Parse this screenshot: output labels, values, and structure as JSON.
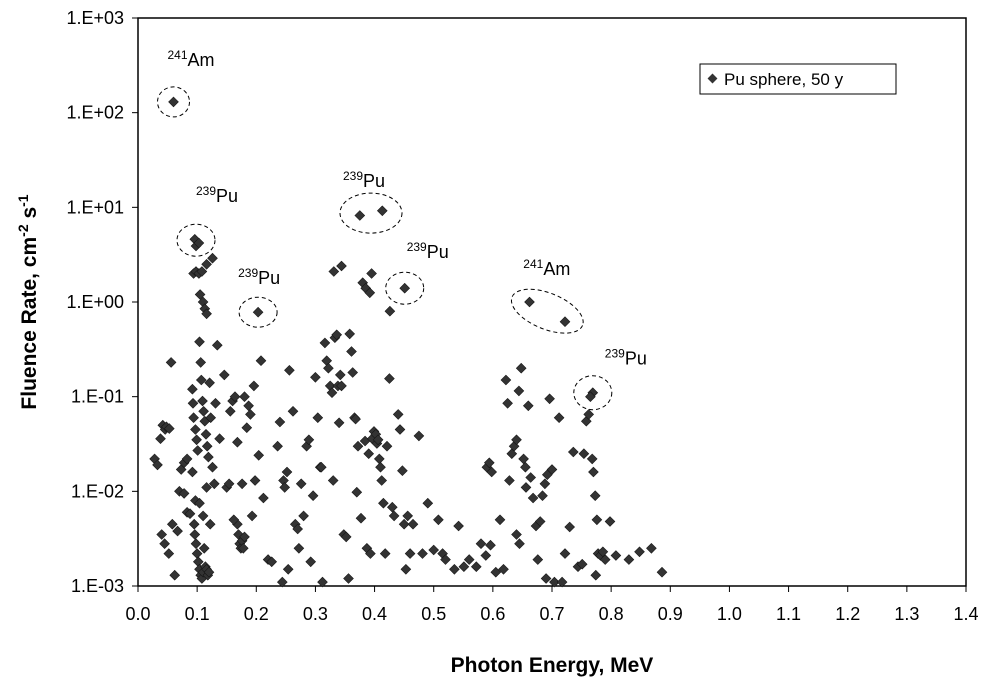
{
  "chart_data": {
    "type": "scatter",
    "title": "",
    "xlabel": "Photon Energy, MeV",
    "ylabel": {
      "base": "Fluence Rate, cm",
      "sup1": "-2",
      "mid": " s",
      "sup2": "-1"
    },
    "xlim": [
      0.0,
      1.4
    ],
    "ylim": [
      0.001,
      1000
    ],
    "yscale": "log",
    "grid": false,
    "legend_position": "top-right",
    "x_ticks": [
      "0.0",
      "0.1",
      "0.2",
      "0.3",
      "0.4",
      "0.5",
      "0.6",
      "0.7",
      "0.8",
      "0.9",
      "1.0",
      "1.1",
      "1.2",
      "1.3",
      "1.4"
    ],
    "x_tick_values": [
      0,
      0.1,
      0.2,
      0.3,
      0.4,
      0.5,
      0.6,
      0.7,
      0.8,
      0.9,
      1.0,
      1.1,
      1.2,
      1.3,
      1.4
    ],
    "y_ticks": [
      "1.E-03",
      "1.E-02",
      "1.E-01",
      "1.E+00",
      "1.E+01",
      "1.E+02",
      "1.E+03"
    ],
    "y_tick_values": [
      0.001,
      0.01,
      0.1,
      1,
      10,
      100,
      1000
    ],
    "series": [
      {
        "name": "Pu sphere, 50 y",
        "marker_color": "#333333",
        "points": [
          [
            0.06,
            130
          ],
          [
            0.096,
            4.6
          ],
          [
            0.098,
            3.9
          ],
          [
            0.103,
            4.2
          ],
          [
            0.203,
            0.78
          ],
          [
            0.375,
            8.2
          ],
          [
            0.413,
            9.2
          ],
          [
            0.451,
            1.4
          ],
          [
            0.662,
            1.0
          ],
          [
            0.722,
            0.62
          ],
          [
            0.769,
            0.11
          ],
          [
            0.094,
            2.0
          ],
          [
            0.098,
            2.1
          ],
          [
            0.103,
            2.0
          ],
          [
            0.108,
            2.1
          ],
          [
            0.116,
            2.5
          ],
          [
            0.126,
            2.9
          ],
          [
            0.105,
            1.2
          ],
          [
            0.11,
            1.0
          ],
          [
            0.113,
            0.85
          ],
          [
            0.116,
            0.75
          ],
          [
            0.331,
            2.1
          ],
          [
            0.344,
            2.4
          ],
          [
            0.38,
            1.6
          ],
          [
            0.385,
            1.4
          ],
          [
            0.392,
            1.25
          ],
          [
            0.395,
            2.0
          ],
          [
            0.426,
            0.8
          ],
          [
            0.056,
            0.23
          ],
          [
            0.042,
            0.05
          ],
          [
            0.046,
            0.045
          ],
          [
            0.048,
            0.048
          ],
          [
            0.053,
            0.046
          ],
          [
            0.028,
            0.022
          ],
          [
            0.033,
            0.019
          ],
          [
            0.038,
            0.036
          ],
          [
            0.04,
            0.0035
          ],
          [
            0.045,
            0.0028
          ],
          [
            0.052,
            0.0022
          ],
          [
            0.062,
            0.0013
          ],
          [
            0.058,
            0.0045
          ],
          [
            0.067,
            0.0038
          ],
          [
            0.073,
            0.017
          ],
          [
            0.078,
            0.02
          ],
          [
            0.083,
            0.022
          ],
          [
            0.07,
            0.01
          ],
          [
            0.078,
            0.0095
          ],
          [
            0.083,
            0.006
          ],
          [
            0.088,
            0.0058
          ],
          [
            0.092,
            0.016
          ],
          [
            0.092,
            0.12
          ],
          [
            0.093,
            0.085
          ],
          [
            0.094,
            0.06
          ],
          [
            0.097,
            0.045
          ],
          [
            0.099,
            0.035
          ],
          [
            0.101,
            0.027
          ],
          [
            0.104,
            0.38
          ],
          [
            0.106,
            0.23
          ],
          [
            0.107,
            0.15
          ],
          [
            0.109,
            0.09
          ],
          [
            0.111,
            0.07
          ],
          [
            0.113,
            0.055
          ],
          [
            0.115,
            0.04
          ],
          [
            0.117,
            0.03
          ],
          [
            0.119,
            0.023
          ],
          [
            0.121,
            0.14
          ],
          [
            0.123,
            0.06
          ],
          [
            0.126,
            0.018
          ],
          [
            0.129,
            0.012
          ],
          [
            0.131,
            0.085
          ],
          [
            0.134,
            0.35
          ],
          [
            0.138,
            0.036
          ],
          [
            0.096,
            0.0035
          ],
          [
            0.098,
            0.0028
          ],
          [
            0.1,
            0.0022
          ],
          [
            0.102,
            0.0018
          ],
          [
            0.104,
            0.0015
          ],
          [
            0.106,
            0.0013
          ],
          [
            0.108,
            0.0012
          ],
          [
            0.11,
            0.0014
          ],
          [
            0.112,
            0.0025
          ],
          [
            0.114,
            0.0016
          ],
          [
            0.116,
            0.0015
          ],
          [
            0.118,
            0.0013
          ],
          [
            0.12,
            0.0014
          ],
          [
            0.097,
            0.008
          ],
          [
            0.104,
            0.0075
          ],
          [
            0.11,
            0.0055
          ],
          [
            0.116,
            0.011
          ],
          [
            0.122,
            0.0045
          ],
          [
            0.095,
            0.0045
          ],
          [
            0.146,
            0.17
          ],
          [
            0.15,
            0.011
          ],
          [
            0.154,
            0.012
          ],
          [
            0.156,
            0.07
          ],
          [
            0.16,
            0.09
          ],
          [
            0.164,
            0.1
          ],
          [
            0.168,
            0.0045
          ],
          [
            0.17,
            0.0035
          ],
          [
            0.172,
            0.0028
          ],
          [
            0.174,
            0.0025
          ],
          [
            0.176,
            0.003
          ],
          [
            0.178,
            0.0025
          ],
          [
            0.18,
            0.0033
          ],
          [
            0.162,
            0.005
          ],
          [
            0.168,
            0.033
          ],
          [
            0.176,
            0.012
          ],
          [
            0.18,
            0.1
          ],
          [
            0.184,
            0.047
          ],
          [
            0.187,
            0.08
          ],
          [
            0.19,
            0.065
          ],
          [
            0.193,
            0.0055
          ],
          [
            0.196,
            0.13
          ],
          [
            0.198,
            0.013
          ],
          [
            0.204,
            0.024
          ],
          [
            0.208,
            0.24
          ],
          [
            0.212,
            0.0085
          ],
          [
            0.22,
            0.0019
          ],
          [
            0.226,
            0.0018
          ],
          [
            0.236,
            0.03
          ],
          [
            0.24,
            0.054
          ],
          [
            0.246,
            0.013
          ],
          [
            0.248,
            0.011
          ],
          [
            0.252,
            0.016
          ],
          [
            0.254,
            0.0015
          ],
          [
            0.244,
            0.0011
          ],
          [
            0.256,
            0.19
          ],
          [
            0.262,
            0.07
          ],
          [
            0.266,
            0.0045
          ],
          [
            0.27,
            0.004
          ],
          [
            0.272,
            0.0025
          ],
          [
            0.276,
            0.012
          ],
          [
            0.28,
            0.0055
          ],
          [
            0.285,
            0.03
          ],
          [
            0.289,
            0.035
          ],
          [
            0.292,
            0.0018
          ],
          [
            0.296,
            0.009
          ],
          [
            0.3,
            0.16
          ],
          [
            0.304,
            0.06
          ],
          [
            0.308,
            0.018
          ],
          [
            0.31,
            0.018
          ],
          [
            0.312,
            0.0011
          ],
          [
            0.316,
            0.37
          ],
          [
            0.319,
            0.24
          ],
          [
            0.322,
            0.2
          ],
          [
            0.325,
            0.13
          ],
          [
            0.328,
            0.11
          ],
          [
            0.33,
            0.013
          ],
          [
            0.333,
            0.42
          ],
          [
            0.336,
            0.45
          ],
          [
            0.338,
            0.13
          ],
          [
            0.34,
            0.053
          ],
          [
            0.342,
            0.17
          ],
          [
            0.344,
            0.13
          ],
          [
            0.348,
            0.0035
          ],
          [
            0.352,
            0.0033
          ],
          [
            0.356,
            0.0012
          ],
          [
            0.358,
            0.46
          ],
          [
            0.361,
            0.3
          ],
          [
            0.363,
            0.18
          ],
          [
            0.366,
            0.06
          ],
          [
            0.368,
            0.058
          ],
          [
            0.37,
            0.0098
          ],
          [
            0.372,
            0.03
          ],
          [
            0.377,
            0.0052
          ],
          [
            0.384,
            0.034
          ],
          [
            0.387,
            0.0025
          ],
          [
            0.39,
            0.025
          ],
          [
            0.393,
            0.0022
          ],
          [
            0.396,
            0.036
          ],
          [
            0.399,
            0.043
          ],
          [
            0.402,
            0.04
          ],
          [
            0.404,
            0.032
          ],
          [
            0.406,
            0.035
          ],
          [
            0.408,
            0.022
          ],
          [
            0.41,
            0.018
          ],
          [
            0.412,
            0.013
          ],
          [
            0.415,
            0.0075
          ],
          [
            0.418,
            0.0022
          ],
          [
            0.421,
            0.03
          ],
          [
            0.425,
            0.155
          ],
          [
            0.43,
            0.0068
          ],
          [
            0.433,
            0.0055
          ],
          [
            0.44,
            0.065
          ],
          [
            0.443,
            0.045
          ],
          [
            0.447,
            0.0165
          ],
          [
            0.45,
            0.0045
          ],
          [
            0.453,
            0.0015
          ],
          [
            0.456,
            0.0055
          ],
          [
            0.46,
            0.0022
          ],
          [
            0.465,
            0.0045
          ],
          [
            0.475,
            0.0385
          ],
          [
            0.481,
            0.0022
          ],
          [
            0.49,
            0.0075
          ],
          [
            0.5,
            0.0024
          ],
          [
            0.508,
            0.005
          ],
          [
            0.515,
            0.0022
          ],
          [
            0.52,
            0.0019
          ],
          [
            0.535,
            0.0015
          ],
          [
            0.542,
            0.0043
          ],
          [
            0.551,
            0.0016
          ],
          [
            0.56,
            0.0019
          ],
          [
            0.572,
            0.0016
          ],
          [
            0.58,
            0.0028
          ],
          [
            0.588,
            0.0021
          ],
          [
            0.596,
            0.0027
          ],
          [
            0.59,
            0.018
          ],
          [
            0.594,
            0.02
          ],
          [
            0.598,
            0.016
          ],
          [
            0.605,
            0.0014
          ],
          [
            0.612,
            0.005
          ],
          [
            0.618,
            0.0015
          ],
          [
            0.622,
            0.15
          ],
          [
            0.625,
            0.085
          ],
          [
            0.628,
            0.013
          ],
          [
            0.632,
            0.025
          ],
          [
            0.636,
            0.03
          ],
          [
            0.64,
            0.035
          ],
          [
            0.644,
            0.115
          ],
          [
            0.648,
            0.2
          ],
          [
            0.652,
            0.022
          ],
          [
            0.655,
            0.018
          ],
          [
            0.656,
            0.011
          ],
          [
            0.66,
            0.08
          ],
          [
            0.664,
            0.014
          ],
          [
            0.668,
            0.0085
          ],
          [
            0.673,
            0.0043
          ],
          [
            0.676,
            0.0019
          ],
          [
            0.68,
            0.0048
          ],
          [
            0.684,
            0.009
          ],
          [
            0.688,
            0.012
          ],
          [
            0.692,
            0.015
          ],
          [
            0.696,
            0.095
          ],
          [
            0.7,
            0.017
          ],
          [
            0.704,
            0.0011
          ],
          [
            0.712,
            0.06
          ],
          [
            0.717,
            0.0011
          ],
          [
            0.722,
            0.0022
          ],
          [
            0.73,
            0.0042
          ],
          [
            0.736,
            0.026
          ],
          [
            0.744,
            0.0016
          ],
          [
            0.751,
            0.0017
          ],
          [
            0.754,
            0.025
          ],
          [
            0.758,
            0.055
          ],
          [
            0.762,
            0.065
          ],
          [
            0.765,
            0.1
          ],
          [
            0.768,
            0.022
          ],
          [
            0.77,
            0.016
          ],
          [
            0.773,
            0.009
          ],
          [
            0.776,
            0.005
          ],
          [
            0.778,
            0.0022
          ],
          [
            0.782,
            0.0021
          ],
          [
            0.786,
            0.0023
          ],
          [
            0.79,
            0.0019
          ],
          [
            0.798,
            0.0048
          ],
          [
            0.808,
            0.0021
          ],
          [
            0.83,
            0.0019
          ],
          [
            0.848,
            0.0023
          ],
          [
            0.868,
            0.0025
          ],
          [
            0.886,
            0.0014
          ],
          [
            0.64,
            0.0035
          ],
          [
            0.645,
            0.0028
          ],
          [
            0.69,
            0.0012
          ],
          [
            0.774,
            0.0013
          ]
        ]
      }
    ],
    "annotations": [
      {
        "sup": "241",
        "text": "Am",
        "x": 0.06,
        "y": 130
      },
      {
        "sup": "239",
        "text": "Pu",
        "x": 0.098,
        "y": 4.5
      },
      {
        "sup": "239",
        "text": "Pu",
        "x": 0.203,
        "y": 0.78
      },
      {
        "sup": "239",
        "text": "Pu",
        "x": 0.394,
        "y": 8.7
      },
      {
        "sup": "239",
        "text": "Pu",
        "x": 0.451,
        "y": 1.4
      },
      {
        "sup": "241",
        "text": "Am",
        "x": 0.692,
        "y": 0.8
      },
      {
        "sup": "239",
        "text": "Pu",
        "x": 0.769,
        "y": 0.11
      }
    ]
  }
}
